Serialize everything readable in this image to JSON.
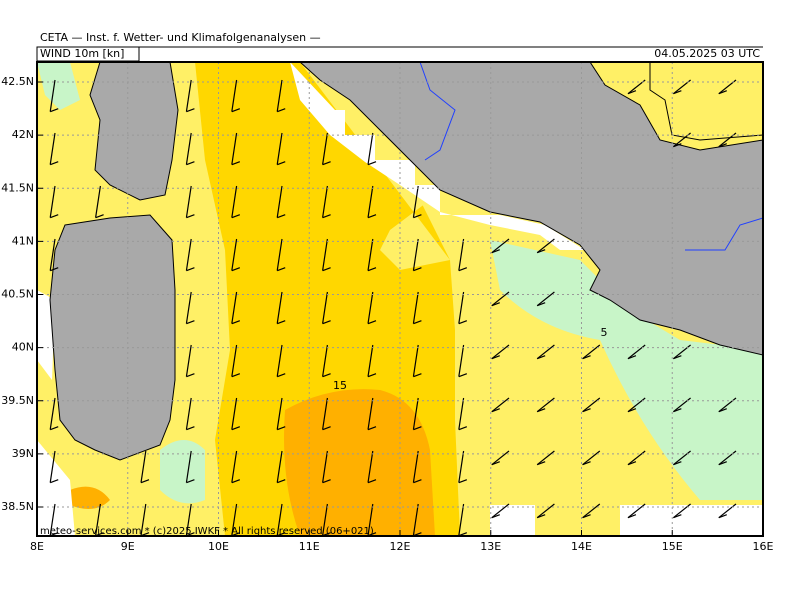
{
  "header": {
    "title": "CETA — Inst. f. Wetter- und Klimafolgenanalysen —",
    "parameter": "WIND 10m [kn]",
    "valid_time": "04.05.2025 03 UTC"
  },
  "map": {
    "lat_ticks": [
      {
        "value": 42.5,
        "label": "42.5N"
      },
      {
        "value": 42,
        "label": "42N"
      },
      {
        "value": 41.5,
        "label": "41.5N"
      },
      {
        "value": 41,
        "label": "41N"
      },
      {
        "value": 40.5,
        "label": "40.5N"
      },
      {
        "value": 40,
        "label": "40N"
      },
      {
        "value": 39.5,
        "label": "39.5N"
      },
      {
        "value": 39,
        "label": "39N"
      },
      {
        "value": 38.5,
        "label": "38.5N"
      }
    ],
    "lon_ticks": [
      {
        "value": 8,
        "label": "8E"
      },
      {
        "value": 9,
        "label": "9E"
      },
      {
        "value": 10,
        "label": "10E"
      },
      {
        "value": 11,
        "label": "11E"
      },
      {
        "value": 12,
        "label": "12E"
      },
      {
        "value": 13,
        "label": "13E"
      },
      {
        "value": 14,
        "label": "14E"
      },
      {
        "value": 15,
        "label": "15E"
      },
      {
        "value": 16,
        "label": "16E"
      }
    ],
    "contour_labels": [
      "15",
      "5"
    ]
  },
  "footer": "meteo-services.com * (c)2025 IWKF * All rights reserved (06+021)"
}
